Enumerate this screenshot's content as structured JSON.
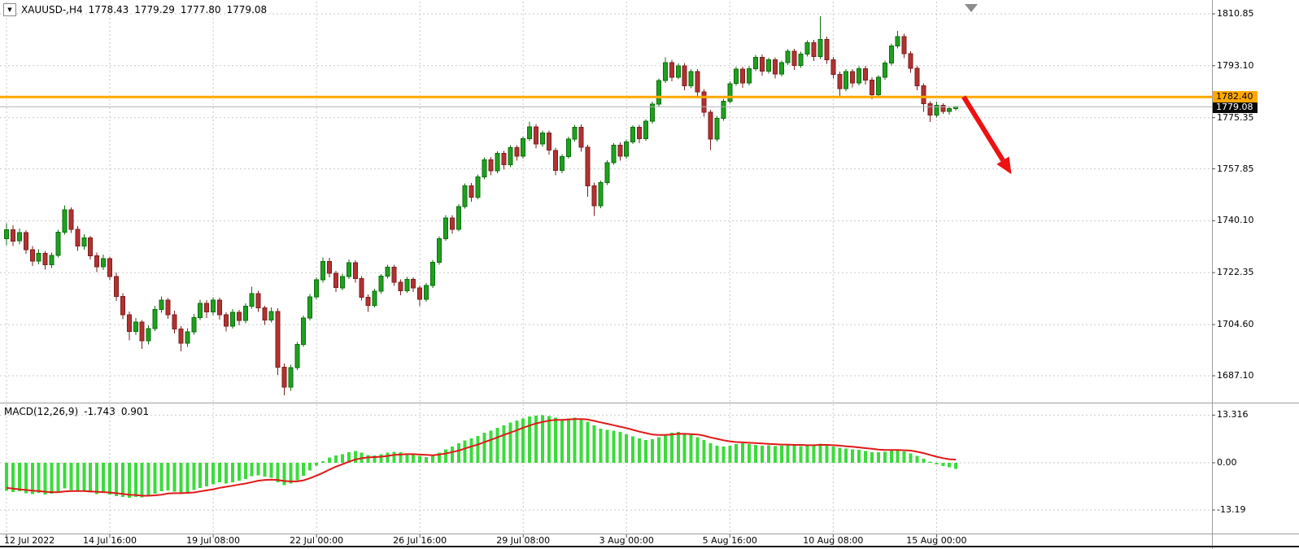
{
  "header": {
    "symbol_period": "XAUUSD-,H4",
    "open": "1778.43",
    "high": "1779.29",
    "low": "1777.80",
    "close": "1779.08"
  },
  "macd_panel": {
    "label": "MACD(12,26,9)",
    "main_value": "-1.743",
    "signal_value": "0.901"
  },
  "chart_data": {
    "type": "candlestick",
    "title": "XAUUSD- H4 candlestick chart with MACD(12,26,9) sub-window",
    "symbol": "XAUUSD-",
    "timeframe": "H4",
    "price_axis_range": [
      1685.0,
      1814.5
    ],
    "grid": "dashed",
    "price_ticks": [
      {
        "price": 1810.85,
        "label": "1810.85"
      },
      {
        "price": 1793.1,
        "label": "1793.10"
      },
      {
        "price": 1775.35,
        "label": "1775.35"
      },
      {
        "price": 1757.85,
        "label": "1757.85"
      },
      {
        "price": 1740.1,
        "label": "1740.10"
      },
      {
        "price": 1722.35,
        "label": "1722.35"
      },
      {
        "price": 1704.6,
        "label": "1704.60"
      },
      {
        "price": 1687.1,
        "label": "1687.10"
      }
    ],
    "macd_ticks": [
      {
        "value": 13.316,
        "label": "13.316"
      },
      {
        "value": 0,
        "label": "0.00"
      },
      {
        "value": -13.19,
        "label": "-13.19"
      }
    ],
    "time_labels": [
      {
        "bar": 0,
        "label": "12 Jul 2022"
      },
      {
        "bar": 16,
        "label": "14 Jul 16:00"
      },
      {
        "bar": 32,
        "label": "19 Jul 08:00"
      },
      {
        "bar": 48,
        "label": "22 Jul 00:00"
      },
      {
        "bar": 64,
        "label": "26 Jul 16:00"
      },
      {
        "bar": 80,
        "label": "29 Jul 08:00"
      },
      {
        "bar": 96,
        "label": "3 Aug 00:00"
      },
      {
        "bar": 112,
        "label": "5 Aug 16:00"
      },
      {
        "bar": 128,
        "label": "10 Aug 08:00"
      },
      {
        "bar": 144,
        "label": "15 Aug 00:00"
      }
    ],
    "hline": {
      "price": 1782.4,
      "label": "1782.40",
      "color": "#FFA800"
    },
    "bid": {
      "price": 1779.08,
      "label": "1779.08"
    },
    "annotations": [
      {
        "type": "arrow",
        "color": "#EE1111",
        "from": {
          "bar": 148.2,
          "price": 1782.5
        },
        "to": {
          "bar": 155.6,
          "price": 1756.0
        }
      }
    ],
    "colors": {
      "background": "#FFFFFF",
      "grid": "#C9C9C9",
      "bull": "#1FA11F",
      "bull_border": "#0B6F0B",
      "bear": "#B23232",
      "bear_border": "#7E1E1E",
      "histogram": "#3BDB3B",
      "signal_line": "#E01818",
      "bid_line": "#AEB4B9",
      "axis_text": "#000000",
      "separator": "#9E9E9E"
    },
    "ohlc": [
      [
        1734.0,
        1739.2,
        1731.8,
        1737.0
      ],
      [
        1737.0,
        1738.5,
        1731.5,
        1733.2
      ],
      [
        1733.2,
        1737.4,
        1732.0,
        1736.1
      ],
      [
        1736.1,
        1736.9,
        1728.8,
        1730.2
      ],
      [
        1730.2,
        1731.5,
        1724.6,
        1726.3
      ],
      [
        1726.3,
        1730.4,
        1725.2,
        1729.0
      ],
      [
        1729.0,
        1729.8,
        1723.4,
        1725.1
      ],
      [
        1725.1,
        1729.3,
        1723.9,
        1728.2
      ],
      [
        1728.2,
        1737.0,
        1727.5,
        1736.2
      ],
      [
        1736.2,
        1745.3,
        1735.4,
        1743.8
      ],
      [
        1743.8,
        1744.6,
        1735.9,
        1737.1
      ],
      [
        1737.1,
        1738.2,
        1729.8,
        1731.4
      ],
      [
        1731.4,
        1735.5,
        1730.2,
        1734.3
      ],
      [
        1734.3,
        1735.0,
        1726.9,
        1728.1
      ],
      [
        1728.1,
        1729.2,
        1722.6,
        1724.4
      ],
      [
        1724.4,
        1728.6,
        1723.3,
        1727.2
      ],
      [
        1727.2,
        1727.9,
        1719.8,
        1721.0
      ],
      [
        1721.0,
        1722.4,
        1712.7,
        1714.2
      ],
      [
        1714.2,
        1715.3,
        1706.4,
        1708.0
      ],
      [
        1708.0,
        1709.1,
        1699.2,
        1702.3
      ],
      [
        1702.3,
        1706.8,
        1701.0,
        1705.4
      ],
      [
        1705.4,
        1706.2,
        1696.3,
        1699.1
      ],
      [
        1699.1,
        1704.4,
        1697.8,
        1703.2
      ],
      [
        1703.2,
        1711.0,
        1702.4,
        1709.8
      ],
      [
        1709.8,
        1714.2,
        1708.6,
        1712.9
      ],
      [
        1712.9,
        1713.6,
        1706.5,
        1708.0
      ],
      [
        1708.0,
        1709.4,
        1701.6,
        1703.1
      ],
      [
        1703.1,
        1704.0,
        1695.4,
        1698.2
      ],
      [
        1698.2,
        1703.3,
        1697.0,
        1702.1
      ],
      [
        1702.1,
        1708.2,
        1701.2,
        1707.0
      ],
      [
        1707.0,
        1713.1,
        1706.2,
        1711.8
      ],
      [
        1711.8,
        1712.9,
        1706.8,
        1708.9
      ],
      [
        1708.9,
        1714.0,
        1707.8,
        1713.0
      ],
      [
        1713.0,
        1713.8,
        1706.3,
        1707.9
      ],
      [
        1707.9,
        1708.8,
        1702.2,
        1704.1
      ],
      [
        1704.1,
        1709.9,
        1703.2,
        1708.8
      ],
      [
        1708.8,
        1709.6,
        1704.4,
        1706.0
      ],
      [
        1706.0,
        1711.8,
        1705.1,
        1710.9
      ],
      [
        1710.9,
        1717.6,
        1710.0,
        1715.2
      ],
      [
        1715.2,
        1716.1,
        1708.9,
        1710.3
      ],
      [
        1710.3,
        1711.0,
        1704.5,
        1706.2
      ],
      [
        1706.2,
        1710.4,
        1705.3,
        1709.1
      ],
      [
        1709.1,
        1710.2,
        1687.4,
        1690.0
      ],
      [
        1690.0,
        1691.3,
        1680.4,
        1683.2
      ],
      [
        1683.2,
        1690.8,
        1682.0,
        1689.9
      ],
      [
        1689.9,
        1698.6,
        1689.0,
        1697.8
      ],
      [
        1697.8,
        1707.7,
        1697.0,
        1706.9
      ],
      [
        1706.9,
        1715.0,
        1706.0,
        1714.1
      ],
      [
        1714.1,
        1720.8,
        1713.2,
        1719.9
      ],
      [
        1719.9,
        1727.6,
        1719.0,
        1726.2
      ],
      [
        1726.2,
        1727.4,
        1720.8,
        1722.1
      ],
      [
        1722.1,
        1723.0,
        1715.7,
        1717.2
      ],
      [
        1717.2,
        1722.0,
        1716.3,
        1721.0
      ],
      [
        1721.0,
        1726.9,
        1720.2,
        1725.8
      ],
      [
        1725.8,
        1726.6,
        1718.9,
        1720.3
      ],
      [
        1720.3,
        1721.2,
        1712.8,
        1714.0
      ],
      [
        1714.0,
        1714.9,
        1708.9,
        1711.2
      ],
      [
        1711.2,
        1716.9,
        1710.4,
        1716.0
      ],
      [
        1716.0,
        1721.9,
        1715.2,
        1721.1
      ],
      [
        1721.1,
        1725.0,
        1720.3,
        1724.2
      ],
      [
        1724.2,
        1725.0,
        1717.8,
        1719.1
      ],
      [
        1719.1,
        1720.0,
        1714.7,
        1716.2
      ],
      [
        1716.2,
        1720.9,
        1715.4,
        1720.0
      ],
      [
        1720.0,
        1720.8,
        1715.8,
        1717.1
      ],
      [
        1717.1,
        1718.0,
        1710.9,
        1713.2
      ],
      [
        1713.2,
        1718.8,
        1712.4,
        1718.0
      ],
      [
        1718.0,
        1726.7,
        1717.2,
        1725.9
      ],
      [
        1725.9,
        1734.8,
        1725.0,
        1734.0
      ],
      [
        1734.0,
        1742.0,
        1733.2,
        1741.1
      ],
      [
        1741.1,
        1742.0,
        1735.6,
        1737.2
      ],
      [
        1737.2,
        1745.8,
        1736.4,
        1745.0
      ],
      [
        1745.0,
        1752.8,
        1744.2,
        1752.1
      ],
      [
        1752.1,
        1753.0,
        1746.6,
        1748.2
      ],
      [
        1748.2,
        1755.9,
        1747.4,
        1755.1
      ],
      [
        1755.1,
        1761.8,
        1754.3,
        1761.0
      ],
      [
        1761.0,
        1761.9,
        1755.6,
        1757.2
      ],
      [
        1757.2,
        1763.9,
        1756.4,
        1763.1
      ],
      [
        1763.1,
        1764.0,
        1757.6,
        1759.2
      ],
      [
        1759.2,
        1765.9,
        1758.4,
        1765.1
      ],
      [
        1765.1,
        1766.0,
        1760.6,
        1762.2
      ],
      [
        1762.2,
        1768.9,
        1761.4,
        1768.1
      ],
      [
        1768.1,
        1774.0,
        1767.3,
        1772.2
      ],
      [
        1772.2,
        1773.1,
        1764.8,
        1766.3
      ],
      [
        1766.3,
        1771.0,
        1765.4,
        1770.1
      ],
      [
        1770.1,
        1771.0,
        1762.7,
        1764.2
      ],
      [
        1764.2,
        1765.1,
        1755.7,
        1757.3
      ],
      [
        1757.3,
        1762.9,
        1756.4,
        1762.1
      ],
      [
        1762.1,
        1768.8,
        1761.3,
        1768.0
      ],
      [
        1768.0,
        1772.9,
        1767.2,
        1772.1
      ],
      [
        1772.1,
        1773.0,
        1763.7,
        1765.2
      ],
      [
        1765.2,
        1766.1,
        1748.3,
        1752.0
      ],
      [
        1752.0,
        1753.1,
        1741.8,
        1745.2
      ],
      [
        1745.2,
        1753.9,
        1744.4,
        1753.1
      ],
      [
        1753.1,
        1760.8,
        1752.3,
        1760.0
      ],
      [
        1760.0,
        1766.7,
        1759.2,
        1766.0
      ],
      [
        1766.0,
        1766.9,
        1760.6,
        1762.2
      ],
      [
        1762.2,
        1767.9,
        1761.4,
        1767.1
      ],
      [
        1767.1,
        1772.8,
        1766.3,
        1772.0
      ],
      [
        1772.0,
        1772.9,
        1766.6,
        1768.2
      ],
      [
        1768.2,
        1774.9,
        1767.4,
        1774.1
      ],
      [
        1774.1,
        1780.8,
        1773.3,
        1780.0
      ],
      [
        1780.0,
        1788.7,
        1779.2,
        1788.0
      ],
      [
        1788.0,
        1796.0,
        1787.2,
        1794.2
      ],
      [
        1794.2,
        1795.1,
        1787.7,
        1789.2
      ],
      [
        1789.2,
        1793.9,
        1788.4,
        1793.1
      ],
      [
        1793.1,
        1794.0,
        1784.7,
        1786.2
      ],
      [
        1786.2,
        1791.9,
        1785.4,
        1791.1
      ],
      [
        1791.1,
        1792.0,
        1782.7,
        1784.2
      ],
      [
        1784.2,
        1785.1,
        1775.7,
        1777.2
      ],
      [
        1777.2,
        1778.1,
        1764.3,
        1768.0
      ],
      [
        1768.0,
        1775.9,
        1767.2,
        1775.1
      ],
      [
        1775.1,
        1781.8,
        1774.3,
        1781.0
      ],
      [
        1781.0,
        1787.7,
        1780.2,
        1787.0
      ],
      [
        1787.0,
        1792.8,
        1786.2,
        1791.9
      ],
      [
        1791.9,
        1792.8,
        1785.6,
        1787.2
      ],
      [
        1787.2,
        1792.9,
        1786.4,
        1792.1
      ],
      [
        1792.1,
        1796.8,
        1791.3,
        1796.0
      ],
      [
        1796.0,
        1796.9,
        1789.7,
        1791.2
      ],
      [
        1791.2,
        1795.9,
        1790.4,
        1795.1
      ],
      [
        1795.1,
        1796.0,
        1788.7,
        1790.2
      ],
      [
        1790.2,
        1794.9,
        1789.4,
        1794.1
      ],
      [
        1794.1,
        1798.8,
        1793.3,
        1798.0
      ],
      [
        1798.0,
        1798.9,
        1791.7,
        1793.2
      ],
      [
        1793.2,
        1797.9,
        1792.4,
        1797.1
      ],
      [
        1797.1,
        1801.8,
        1796.3,
        1801.0
      ],
      [
        1801.0,
        1801.9,
        1794.7,
        1796.2
      ],
      [
        1796.2,
        1810.0,
        1795.4,
        1802.1
      ],
      [
        1802.1,
        1803.0,
        1793.7,
        1795.2
      ],
      [
        1795.2,
        1796.1,
        1788.7,
        1790.2
      ],
      [
        1790.2,
        1791.1,
        1782.4,
        1785.3
      ],
      [
        1785.3,
        1791.9,
        1784.5,
        1791.1
      ],
      [
        1791.1,
        1792.0,
        1785.7,
        1787.2
      ],
      [
        1787.2,
        1792.9,
        1786.4,
        1792.1
      ],
      [
        1792.1,
        1793.0,
        1786.7,
        1788.2
      ],
      [
        1788.2,
        1789.1,
        1781.7,
        1783.2
      ],
      [
        1783.2,
        1789.8,
        1782.4,
        1789.1
      ],
      [
        1789.1,
        1794.8,
        1788.3,
        1794.0
      ],
      [
        1794.0,
        1800.7,
        1793.2,
        1799.9
      ],
      [
        1799.9,
        1805.0,
        1799.1,
        1803.1
      ],
      [
        1803.1,
        1804.0,
        1795.7,
        1797.2
      ],
      [
        1797.2,
        1798.1,
        1790.7,
        1792.2
      ],
      [
        1792.2,
        1793.1,
        1784.7,
        1786.2
      ],
      [
        1786.2,
        1787.1,
        1777.3,
        1780.1
      ],
      [
        1780.1,
        1781.0,
        1773.8,
        1776.2
      ],
      [
        1776.2,
        1780.8,
        1775.4,
        1779.5
      ],
      [
        1779.5,
        1780.3,
        1776.6,
        1777.5
      ],
      [
        1777.5,
        1779.2,
        1776.4,
        1778.4
      ],
      [
        1778.43,
        1779.29,
        1777.8,
        1779.08
      ]
    ],
    "macd": {
      "label": "MACD(12,26,9)",
      "main_value": -1.743,
      "signal_value": 0.901,
      "histogram": [
        -7.8,
        -8.2,
        -8.0,
        -8.5,
        -8.8,
        -8.4,
        -8.9,
        -8.6,
        -7.9,
        -7.2,
        -7.6,
        -8.1,
        -7.8,
        -8.3,
        -8.7,
        -8.4,
        -8.9,
        -9.3,
        -9.6,
        -9.8,
        -9.5,
        -9.7,
        -9.2,
        -8.6,
        -8.0,
        -7.7,
        -8.1,
        -8.5,
        -8.2,
        -7.6,
        -7.0,
        -6.6,
        -6.0,
        -5.5,
        -5.8,
        -5.4,
        -5.0,
        -4.5,
        -3.8,
        -3.5,
        -3.9,
        -4.2,
        -5.5,
        -6.3,
        -5.8,
        -4.9,
        -3.6,
        -2.2,
        -0.8,
        0.5,
        1.5,
        2.0,
        2.4,
        3.0,
        3.3,
        2.8,
        2.2,
        2.0,
        2.4,
        2.8,
        3.1,
        2.9,
        2.6,
        2.3,
        1.9,
        1.6,
        2.0,
        2.8,
        3.8,
        4.6,
        5.4,
        6.3,
        6.8,
        7.5,
        8.4,
        9.0,
        9.8,
        10.4,
        11.2,
        11.8,
        12.4,
        12.9,
        13.2,
        13.316,
        13.1,
        12.6,
        12.2,
        12.4,
        12.6,
        12.3,
        11.5,
        10.4,
        9.6,
        9.2,
        9.0,
        8.6,
        8.0,
        7.4,
        6.8,
        6.4,
        6.6,
        7.2,
        7.9,
        8.4,
        8.6,
        8.3,
        7.8,
        7.2,
        6.4,
        5.4,
        4.8,
        4.6,
        4.8,
        5.2,
        5.4,
        5.2,
        5.0,
        4.8,
        4.9,
        4.7,
        4.8,
        5.0,
        4.9,
        4.7,
        4.8,
        5.0,
        5.3,
        5.0,
        4.6,
        4.2,
        4.0,
        3.8,
        3.6,
        3.3,
        3.0,
        2.9,
        3.1,
        3.4,
        3.6,
        3.2,
        2.6,
        1.9,
        1.1,
        0.3,
        -0.4,
        -0.9,
        -1.3,
        -1.743
      ],
      "signal": [
        -7.0,
        -7.2,
        -7.4,
        -7.6,
        -7.8,
        -7.9,
        -8.1,
        -8.2,
        -8.2,
        -8.0,
        -7.9,
        -7.9,
        -7.9,
        -8.0,
        -8.1,
        -8.2,
        -8.3,
        -8.5,
        -8.7,
        -8.9,
        -9.0,
        -9.2,
        -9.2,
        -9.1,
        -8.9,
        -8.6,
        -8.5,
        -8.5,
        -8.4,
        -8.3,
        -8.0,
        -7.7,
        -7.4,
        -7.0,
        -6.7,
        -6.4,
        -6.1,
        -5.8,
        -5.4,
        -5.0,
        -4.8,
        -4.7,
        -4.8,
        -5.1,
        -5.2,
        -5.2,
        -4.9,
        -4.3,
        -3.6,
        -2.8,
        -1.9,
        -1.1,
        -0.4,
        0.3,
        0.9,
        1.3,
        1.5,
        1.6,
        1.7,
        1.9,
        2.2,
        2.3,
        2.4,
        2.4,
        2.3,
        2.2,
        2.1,
        2.3,
        2.6,
        3.0,
        3.4,
        4.0,
        4.6,
        5.1,
        5.8,
        6.4,
        7.1,
        7.8,
        8.4,
        9.1,
        9.8,
        10.4,
        11.0,
        11.4,
        11.8,
        12.0,
        12.0,
        12.1,
        12.2,
        12.2,
        12.1,
        11.7,
        11.3,
        10.9,
        10.5,
        10.1,
        9.7,
        9.2,
        8.7,
        8.3,
        7.9,
        7.8,
        7.8,
        7.9,
        8.1,
        8.1,
        8.0,
        7.9,
        7.6,
        7.1,
        6.7,
        6.3,
        6.0,
        5.8,
        5.7,
        5.6,
        5.5,
        5.4,
        5.3,
        5.2,
        5.1,
        5.1,
        5.0,
        5.0,
        4.9,
        4.9,
        5.0,
        5.0,
        4.9,
        4.8,
        4.6,
        4.5,
        4.3,
        4.1,
        3.9,
        3.7,
        3.6,
        3.6,
        3.6,
        3.5,
        3.4,
        3.1,
        2.7,
        2.2,
        1.7,
        1.3,
        1.0,
        0.901
      ]
    }
  }
}
